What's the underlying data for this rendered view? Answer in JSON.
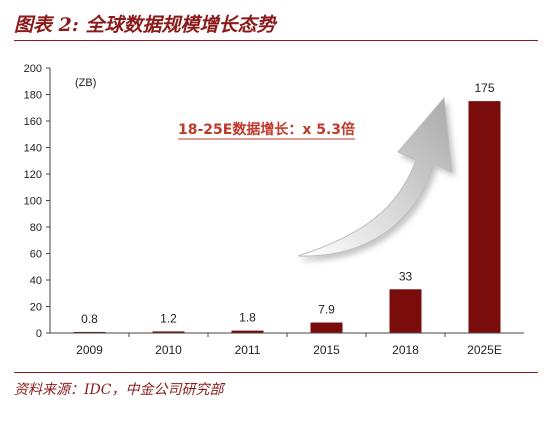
{
  "figure": {
    "title": "图表 2: 全球数据规模增长态势",
    "source": "资料来源：IDC，中金公司研究部"
  },
  "colors": {
    "bar": "#7b0c0c",
    "accent": "#8b1a1a",
    "annotation": "#c0392b"
  },
  "chart_data": {
    "type": "bar",
    "unit_label": "(ZB)",
    "categories": [
      "2009",
      "2010",
      "2011",
      "2015",
      "2018",
      "2025E"
    ],
    "values": [
      0.8,
      1.2,
      1.8,
      7.9,
      33,
      175
    ],
    "data_labels": [
      "0.8",
      "1.2",
      "1.8",
      "7.9",
      "33",
      "175"
    ],
    "ylim": [
      0,
      200
    ],
    "yticks": [
      0,
      20,
      40,
      60,
      80,
      100,
      120,
      140,
      160,
      180,
      200
    ],
    "grid": false,
    "annotation": "18-25E数据增长：x 5.3倍",
    "annotation_arrow": "up-right-arrow-icon"
  }
}
